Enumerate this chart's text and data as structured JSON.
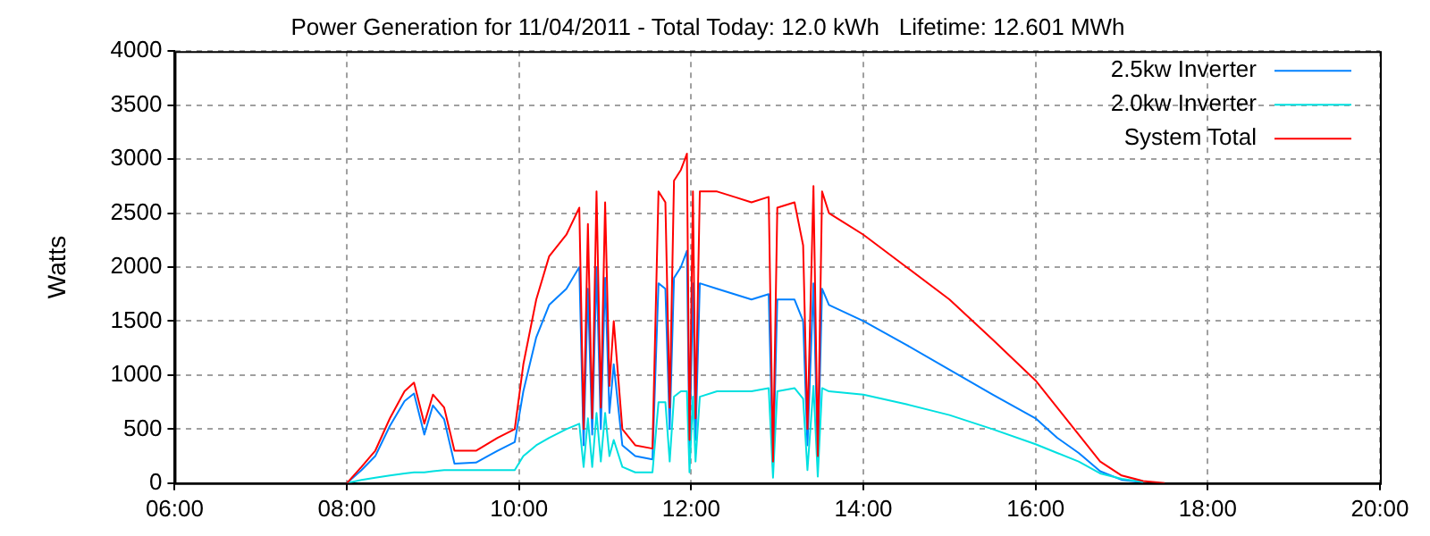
{
  "chart_data": {
    "type": "line",
    "title": "Power Generation for 11/04/2011 - Total Today: 12.0 kWh   Lifetime: 12.601 MWh",
    "ylabel": "Watts",
    "x": [
      8.0,
      8.17,
      8.33,
      8.5,
      8.67,
      8.78,
      8.9,
      9.0,
      9.13,
      9.25,
      9.5,
      9.75,
      9.95,
      10.05,
      10.2,
      10.35,
      10.55,
      10.7,
      10.75,
      10.8,
      10.85,
      10.9,
      10.95,
      11.0,
      11.05,
      11.1,
      11.2,
      11.35,
      11.55,
      11.62,
      11.7,
      11.75,
      11.8,
      11.88,
      11.95,
      11.98,
      12.02,
      12.05,
      12.1,
      12.3,
      12.5,
      12.7,
      12.9,
      12.95,
      13.0,
      13.2,
      13.3,
      13.35,
      13.42,
      13.47,
      13.52,
      13.6,
      14.0,
      14.5,
      15.0,
      15.5,
      16.0,
      16.25,
      16.5,
      16.75,
      17.0,
      17.25,
      17.5
    ],
    "series": [
      {
        "name": "2.5kw Inverter",
        "color": "#0080ff",
        "values": [
          0,
          120,
          250,
          530,
          760,
          830,
          450,
          720,
          590,
          180,
          190,
          300,
          380,
          850,
          1350,
          1650,
          1800,
          2000,
          350,
          1800,
          450,
          2000,
          500,
          1900,
          650,
          1100,
          350,
          250,
          220,
          1850,
          1800,
          500,
          1900,
          2000,
          2150,
          300,
          1850,
          400,
          1850,
          1800,
          1750,
          1700,
          1750,
          150,
          1700,
          1700,
          1500,
          350,
          1850,
          200,
          1800,
          1650,
          1500,
          1280,
          1050,
          820,
          600,
          420,
          280,
          110,
          30,
          10,
          null
        ]
      },
      {
        "name": "2.0kw Inverter",
        "color": "#00e0e0",
        "values": [
          0,
          30,
          50,
          70,
          90,
          100,
          100,
          110,
          120,
          120,
          120,
          120,
          120,
          250,
          350,
          420,
          500,
          550,
          150,
          600,
          150,
          650,
          200,
          650,
          250,
          400,
          150,
          100,
          100,
          750,
          750,
          200,
          800,
          850,
          850,
          100,
          800,
          200,
          800,
          850,
          850,
          850,
          880,
          50,
          850,
          880,
          780,
          120,
          900,
          60,
          880,
          850,
          820,
          730,
          630,
          500,
          360,
          280,
          200,
          90,
          40,
          10,
          null
        ]
      },
      {
        "name": "System Total",
        "color": "#ff0000",
        "values": [
          0,
          150,
          300,
          600,
          850,
          930,
          550,
          820,
          700,
          300,
          300,
          420,
          500,
          1100,
          1700,
          2100,
          2300,
          2550,
          500,
          2400,
          600,
          2700,
          700,
          2600,
          900,
          1500,
          500,
          350,
          320,
          2700,
          2600,
          700,
          2800,
          2900,
          3050,
          400,
          2700,
          600,
          2700,
          2700,
          2650,
          2600,
          2650,
          200,
          2550,
          2600,
          2200,
          500,
          2750,
          250,
          2700,
          2500,
          2300,
          2000,
          1700,
          1330,
          950,
          700,
          450,
          200,
          70,
          20,
          0
        ]
      }
    ],
    "xlim": [
      6,
      20
    ],
    "xticks": [
      {
        "value": 6,
        "label": "06:00"
      },
      {
        "value": 8,
        "label": "08:00"
      },
      {
        "value": 10,
        "label": "10:00"
      },
      {
        "value": 12,
        "label": "12:00"
      },
      {
        "value": 14,
        "label": "14:00"
      },
      {
        "value": 16,
        "label": "16:00"
      },
      {
        "value": 18,
        "label": "18:00"
      },
      {
        "value": 20,
        "label": "20:00"
      }
    ],
    "ylim": [
      0,
      4000
    ],
    "yticks": [
      0,
      500,
      1000,
      1500,
      2000,
      2500,
      3000,
      3500,
      4000
    ],
    "grid": true,
    "legend": "top right",
    "marker": "none",
    "line_style": "solid"
  }
}
